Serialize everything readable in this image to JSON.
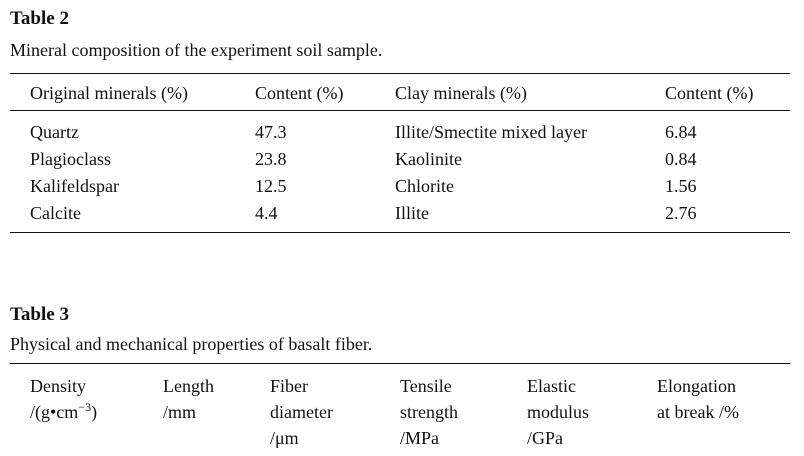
{
  "table2": {
    "title": "Table 2",
    "caption": "Mineral composition of the experiment soil sample.",
    "headers": [
      "Original minerals (%)",
      "Content (%)",
      "Clay minerals (%)",
      "Content (%)"
    ],
    "rows": [
      [
        "Quartz",
        "47.3",
        "Illite/Smectite mixed layer",
        "6.84"
      ],
      [
        "Plagioclass",
        "23.8",
        "Kaolinite",
        "0.84"
      ],
      [
        "Kalifeldspar",
        "12.5",
        "Chlorite",
        "1.56"
      ],
      [
        "Calcite",
        "4.4",
        "Illite",
        "2.76"
      ]
    ]
  },
  "table3": {
    "title": "Table 3",
    "caption": "Physical and mechanical properties of basalt fiber.",
    "headers": [
      {
        "lines": [
          "Density"
        ],
        "unit": {
          "text": "/(g•cm",
          "sup": "−3",
          "after": ")"
        }
      },
      {
        "lines": [
          "Length",
          "/mm"
        ]
      },
      {
        "lines": [
          "Fiber",
          "diameter",
          "/μm"
        ]
      },
      {
        "lines": [
          "Tensile",
          "strength",
          "/MPa"
        ]
      },
      {
        "lines": [
          "Elastic",
          "modulus",
          "/GPa"
        ]
      },
      {
        "lines": [
          "Elongation",
          "at break /%"
        ]
      }
    ]
  }
}
